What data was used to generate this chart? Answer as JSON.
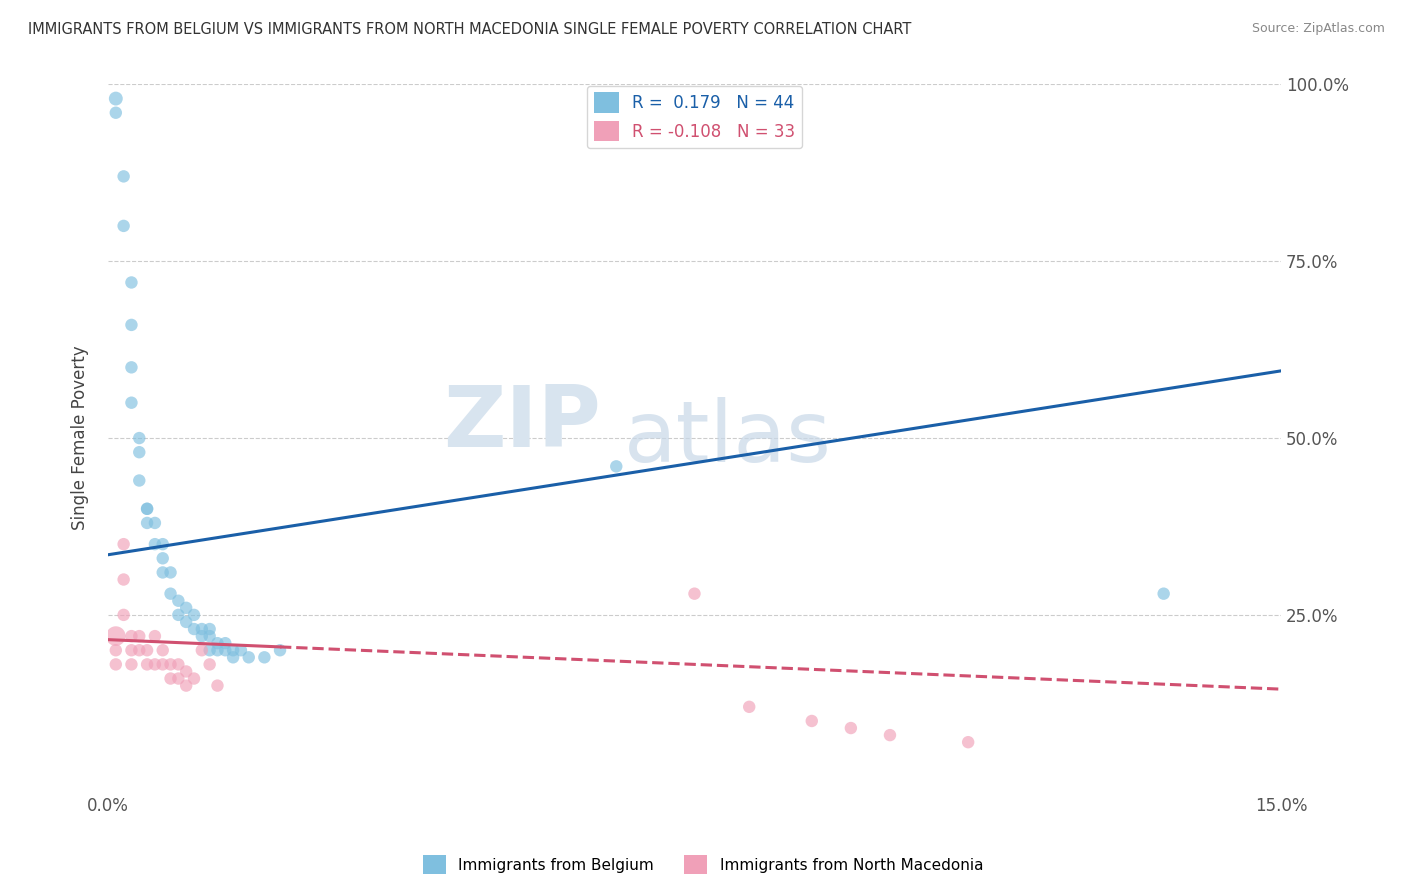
{
  "title": "IMMIGRANTS FROM BELGIUM VS IMMIGRANTS FROM NORTH MACEDONIA SINGLE FEMALE POVERTY CORRELATION CHART",
  "source": "Source: ZipAtlas.com",
  "ylabel": "Single Female Poverty",
  "xlim": [
    0.0,
    0.15
  ],
  "ylim": [
    0.0,
    1.0
  ],
  "belgium_color": "#7fbfdf",
  "north_mac_color": "#f0a0b8",
  "belgium_line_color": "#1a5fa8",
  "north_mac_line_color": "#d05070",
  "R_belgium": 0.179,
  "N_belgium": 44,
  "R_north_mac": -0.108,
  "N_north_mac": 33,
  "watermark_zip": "ZIP",
  "watermark_atlas": "atlas",
  "background_color": "#ffffff",
  "belgium_x": [
    0.001,
    0.001,
    0.002,
    0.002,
    0.003,
    0.003,
    0.003,
    0.003,
    0.004,
    0.004,
    0.004,
    0.005,
    0.005,
    0.005,
    0.006,
    0.006,
    0.007,
    0.007,
    0.007,
    0.008,
    0.008,
    0.009,
    0.009,
    0.01,
    0.01,
    0.011,
    0.011,
    0.012,
    0.012,
    0.013,
    0.013,
    0.013,
    0.014,
    0.014,
    0.015,
    0.015,
    0.016,
    0.016,
    0.017,
    0.018,
    0.02,
    0.022,
    0.065,
    0.135
  ],
  "belgium_y": [
    0.98,
    0.96,
    0.87,
    0.8,
    0.72,
    0.66,
    0.6,
    0.55,
    0.5,
    0.48,
    0.44,
    0.4,
    0.4,
    0.38,
    0.38,
    0.35,
    0.35,
    0.33,
    0.31,
    0.31,
    0.28,
    0.27,
    0.25,
    0.26,
    0.24,
    0.25,
    0.23,
    0.23,
    0.22,
    0.23,
    0.22,
    0.2,
    0.21,
    0.2,
    0.21,
    0.2,
    0.2,
    0.19,
    0.2,
    0.19,
    0.19,
    0.2,
    0.46,
    0.28
  ],
  "belgium_sizes": [
    100,
    80,
    80,
    80,
    80,
    80,
    80,
    80,
    80,
    80,
    80,
    80,
    80,
    80,
    80,
    80,
    80,
    80,
    80,
    80,
    80,
    80,
    80,
    80,
    80,
    80,
    80,
    80,
    80,
    80,
    80,
    80,
    80,
    80,
    80,
    80,
    80,
    80,
    80,
    80,
    80,
    80,
    80,
    80
  ],
  "north_mac_x": [
    0.001,
    0.001,
    0.001,
    0.002,
    0.002,
    0.002,
    0.003,
    0.003,
    0.003,
    0.004,
    0.004,
    0.005,
    0.005,
    0.006,
    0.006,
    0.007,
    0.007,
    0.008,
    0.008,
    0.009,
    0.009,
    0.01,
    0.01,
    0.011,
    0.012,
    0.013,
    0.014,
    0.075,
    0.082,
    0.09,
    0.095,
    0.1,
    0.11
  ],
  "north_mac_y": [
    0.22,
    0.2,
    0.18,
    0.35,
    0.3,
    0.25,
    0.22,
    0.2,
    0.18,
    0.22,
    0.2,
    0.2,
    0.18,
    0.22,
    0.18,
    0.2,
    0.18,
    0.18,
    0.16,
    0.18,
    0.16,
    0.17,
    0.15,
    0.16,
    0.2,
    0.18,
    0.15,
    0.28,
    0.12,
    0.1,
    0.09,
    0.08,
    0.07
  ],
  "north_mac_sizes": [
    200,
    80,
    80,
    80,
    80,
    80,
    80,
    80,
    80,
    80,
    80,
    80,
    80,
    80,
    80,
    80,
    80,
    80,
    80,
    80,
    80,
    80,
    80,
    80,
    80,
    80,
    80,
    80,
    80,
    80,
    80,
    80,
    80
  ],
  "belgium_trend_y0": 0.335,
  "belgium_trend_y1": 0.595,
  "north_mac_trend_y0": 0.215,
  "north_mac_trend_y1": 0.145
}
